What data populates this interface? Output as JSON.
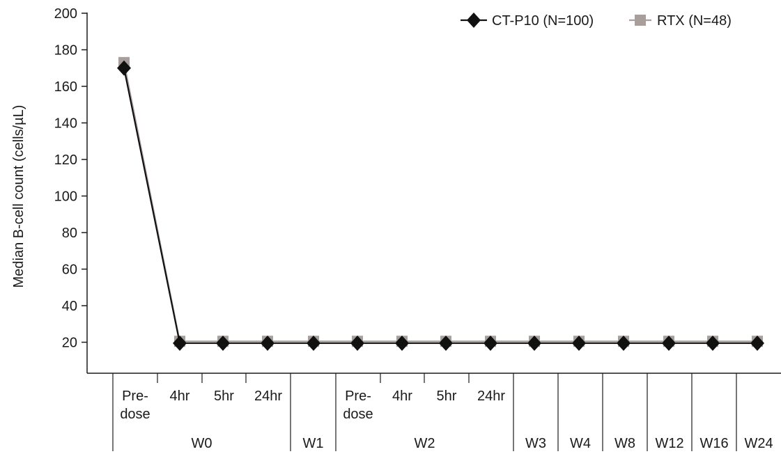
{
  "chart_data": {
    "type": "line",
    "title": "",
    "ylabel": "Median B-cell count (cells/µL)",
    "xlabel": "",
    "ylim": [
      0,
      200
    ],
    "yticks": [
      20,
      40,
      60,
      80,
      100,
      120,
      140,
      160,
      180,
      200
    ],
    "grid": false,
    "legend_position": "top-right",
    "categories": [
      "Pre-dose W0",
      "4hr W0",
      "5hr W0",
      "24hr W0",
      "W1",
      "Pre-dose W2",
      "4hr W2",
      "5hr W2",
      "24hr W2",
      "W3",
      "W4",
      "W8",
      "W12",
      "W16",
      "W24"
    ],
    "sub_labels": [
      [
        "Pre-",
        "dose"
      ],
      [
        "4hr"
      ],
      [
        "5hr"
      ],
      [
        "24hr"
      ],
      [],
      [
        "Pre-",
        "dose"
      ],
      [
        "4hr"
      ],
      [
        "5hr"
      ],
      [
        "24hr"
      ],
      [],
      [],
      [],
      [],
      [],
      []
    ],
    "groups": [
      {
        "label": "W0",
        "start": 0,
        "end": 3
      },
      {
        "label": "W1",
        "start": 4,
        "end": 4
      },
      {
        "label": "W2",
        "start": 5,
        "end": 8
      },
      {
        "label": "W3",
        "start": 9,
        "end": 9
      },
      {
        "label": "W4",
        "start": 10,
        "end": 10
      },
      {
        "label": "W8",
        "start": 11,
        "end": 11
      },
      {
        "label": "W12",
        "start": 12,
        "end": 12
      },
      {
        "label": "W16",
        "start": 13,
        "end": 13
      },
      {
        "label": "W24",
        "start": 14,
        "end": 14
      }
    ],
    "series": [
      {
        "name": "CT-P10 (N=100)",
        "color": "#111111",
        "marker": "diamond",
        "values": [
          170,
          19.5,
          19.5,
          19.5,
          19.5,
          19.5,
          19.5,
          19.5,
          19.5,
          19.5,
          19.5,
          19.5,
          19.5,
          19.5,
          19.5
        ]
      },
      {
        "name": "RTX (N=48)",
        "color": "#a89e9b",
        "marker": "square",
        "values": [
          173,
          20.5,
          20.5,
          20.5,
          20.5,
          20.5,
          20.5,
          20.5,
          20.5,
          20.5,
          20.5,
          20.5,
          20.5,
          20.5,
          20.5
        ]
      }
    ]
  }
}
